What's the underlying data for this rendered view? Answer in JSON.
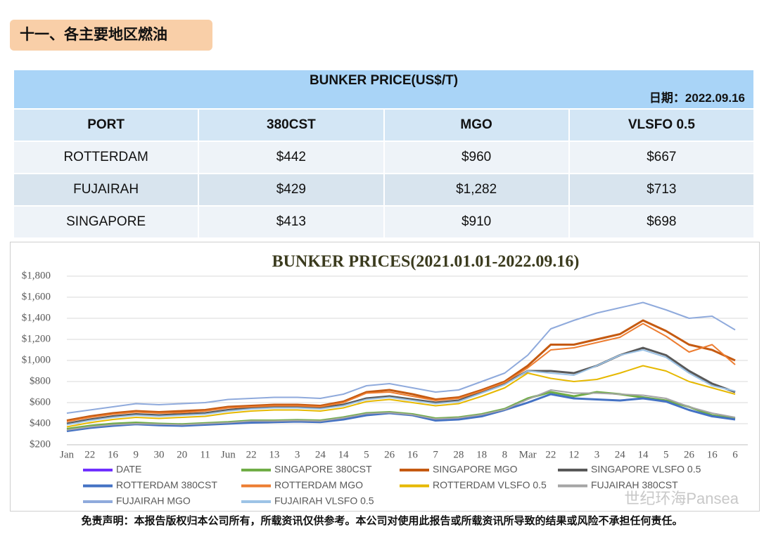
{
  "header": {
    "title": "十一、各主要地区燃油"
  },
  "table": {
    "title": "BUNKER PRICE(US$/T)",
    "date": "日期：2022.09.16",
    "columns": [
      "PORT",
      "380CST",
      "MGO",
      "VLSFO 0.5"
    ],
    "rows": [
      [
        "ROTTERDAM",
        "$442",
        "$960",
        "$667"
      ],
      [
        "FUJAIRAH",
        "$429",
        "$1,282",
        "$713"
      ],
      [
        "SINGAPORE",
        "$413",
        "$910",
        "$698"
      ]
    ]
  },
  "chart_data": {
    "type": "line",
    "title": "BUNKER PRICES(2021.01.01-2022.09.16)",
    "categories": [
      "Jan",
      "22",
      "16",
      "9",
      "30",
      "20",
      "11",
      "Jun",
      "22",
      "13",
      "3",
      "24",
      "14",
      "5",
      "26",
      "16",
      "7",
      "28",
      "18",
      "8",
      "Mar",
      "22",
      "12",
      "3",
      "24",
      "14",
      "5",
      "26",
      "16",
      "6"
    ],
    "ylim": [
      200,
      1800
    ],
    "yticks": [
      {
        "value": 200,
        "label": "$200"
      },
      {
        "value": 400,
        "label": "$400"
      },
      {
        "value": 600,
        "label": "$600"
      },
      {
        "value": 800,
        "label": "$800"
      },
      {
        "value": 1000,
        "label": "$1,000"
      },
      {
        "value": 1200,
        "label": "$1,200"
      },
      {
        "value": 1400,
        "label": "$1,400"
      },
      {
        "value": 1600,
        "label": "$1,600"
      },
      {
        "value": 1800,
        "label": "$1,800"
      }
    ],
    "grid": true,
    "series": [
      {
        "name": "DATE",
        "color": "#7030ff",
        "values": [
          null,
          null,
          null,
          null,
          null,
          null,
          null,
          null,
          null,
          null,
          null,
          null,
          null,
          null,
          null,
          null,
          null,
          null,
          null,
          null,
          null,
          null,
          null,
          null,
          null,
          null,
          null,
          null,
          null,
          null
        ]
      },
      {
        "name": "SINGAPORE 380CST",
        "color": "#70ad47",
        "values": [
          350,
          380,
          400,
          410,
          400,
          395,
          405,
          415,
          430,
          430,
          435,
          430,
          460,
          500,
          510,
          490,
          450,
          460,
          490,
          540,
          640,
          700,
          660,
          700,
          680,
          650,
          620,
          560,
          480,
          450
        ]
      },
      {
        "name": "SINGAPORE MGO",
        "color": "#c55a11",
        "values": [
          430,
          470,
          500,
          520,
          510,
          520,
          530,
          560,
          570,
          580,
          580,
          570,
          610,
          700,
          720,
          680,
          630,
          650,
          720,
          800,
          950,
          1150,
          1150,
          1200,
          1250,
          1380,
          1280,
          1150,
          1100,
          1000
        ]
      },
      {
        "name": "SINGAPORE VLSFO 0.5",
        "color": "#595959",
        "values": [
          400,
          440,
          470,
          490,
          480,
          490,
          500,
          530,
          550,
          560,
          560,
          550,
          580,
          640,
          660,
          630,
          600,
          620,
          700,
          780,
          900,
          900,
          880,
          950,
          1050,
          1120,
          1050,
          900,
          780,
          700
        ]
      },
      {
        "name": "ROTTERDAM 380CST",
        "color": "#4472c4",
        "values": [
          330,
          360,
          380,
          395,
          385,
          380,
          390,
          400,
          410,
          415,
          420,
          415,
          440,
          480,
          500,
          480,
          430,
          440,
          470,
          530,
          600,
          680,
          640,
          630,
          620,
          640,
          610,
          530,
          470,
          440
        ]
      },
      {
        "name": "ROTTERDAM MGO",
        "color": "#ed7d31",
        "values": [
          420,
          460,
          490,
          510,
          500,
          505,
          520,
          550,
          560,
          570,
          570,
          560,
          600,
          690,
          700,
          660,
          620,
          640,
          710,
          790,
          930,
          1100,
          1120,
          1170,
          1220,
          1350,
          1230,
          1080,
          1150,
          960
        ]
      },
      {
        "name": "ROTTERDAM VLSFO 0.5",
        "color": "#e6b800",
        "values": [
          370,
          410,
          440,
          460,
          450,
          460,
          470,
          500,
          520,
          530,
          530,
          520,
          550,
          610,
          630,
          600,
          570,
          590,
          660,
          740,
          880,
          830,
          800,
          820,
          880,
          950,
          900,
          800,
          740,
          680
        ]
      },
      {
        "name": "FUJAIRAH 380CST",
        "color": "#a5a5a5",
        "values": [
          340,
          370,
          390,
          400,
          395,
          390,
          400,
          410,
          425,
          425,
          430,
          425,
          455,
          495,
          505,
          485,
          445,
          455,
          485,
          535,
          630,
          720,
          690,
          690,
          680,
          670,
          640,
          560,
          500,
          460
        ]
      },
      {
        "name": "FUJAIRAH MGO",
        "color": "#8faadc",
        "values": [
          500,
          530,
          560,
          590,
          580,
          590,
          600,
          630,
          640,
          650,
          650,
          640,
          680,
          760,
          780,
          740,
          700,
          720,
          800,
          880,
          1050,
          1300,
          1380,
          1450,
          1500,
          1550,
          1480,
          1400,
          1420,
          1290
        ]
      },
      {
        "name": "FUJAIRAH VLSFO 0.5",
        "color": "#9dc3e6",
        "values": [
          390,
          430,
          460,
          480,
          470,
          480,
          490,
          520,
          540,
          550,
          550,
          540,
          570,
          630,
          650,
          620,
          590,
          610,
          690,
          770,
          900,
          880,
          860,
          950,
          1050,
          1100,
          1030,
          880,
          760,
          710
        ]
      }
    ]
  },
  "watermark": "世纪环海Pansea",
  "footer": {
    "disclaimer": "免责声明：本报告版权归本公司所有，所载资讯仅供参考。本公司对使用此报告或所载资讯所导致的结果或风险不承担任何责任。"
  }
}
